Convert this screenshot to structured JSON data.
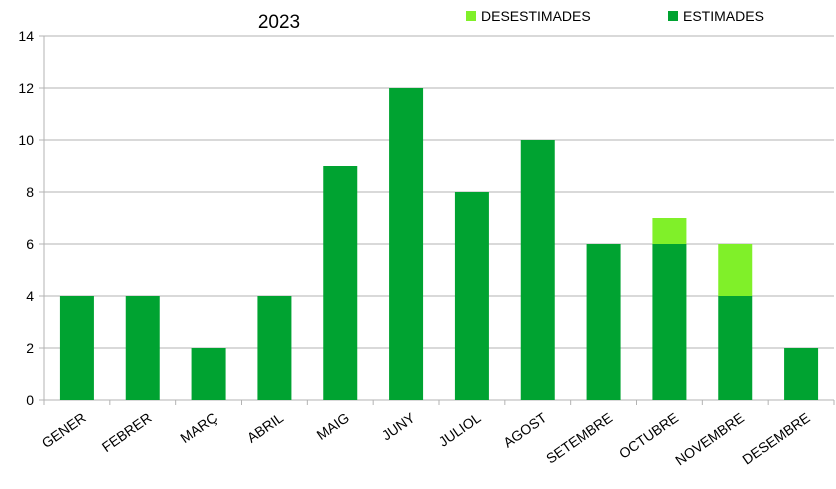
{
  "chart_data": {
    "type": "bar",
    "stacked": true,
    "title": "2023",
    "categories": [
      "GENER",
      "FEBRER",
      "MARÇ",
      "ABRIL",
      "MAIG",
      "JUNY",
      "JULIOL",
      "AGOST",
      "SETEMBRE",
      "OCTUBRE",
      "NOVEMBRE",
      "DESEMBRE"
    ],
    "series": [
      {
        "name": "ESTIMADES",
        "color": "#00A331",
        "values": [
          4,
          4,
          2,
          4,
          9,
          12,
          8,
          10,
          6,
          6,
          4,
          2
        ]
      },
      {
        "name": "DESESTIMADES",
        "color": "#80F029",
        "values": [
          0,
          0,
          0,
          0,
          0,
          0,
          0,
          0,
          0,
          1,
          2,
          0
        ]
      }
    ],
    "ylim": [
      0,
      14
    ],
    "yticks": [
      0,
      2,
      4,
      6,
      8,
      10,
      12,
      14
    ],
    "grid": true,
    "legend": "top-right",
    "xlabel": "",
    "ylabel": ""
  }
}
